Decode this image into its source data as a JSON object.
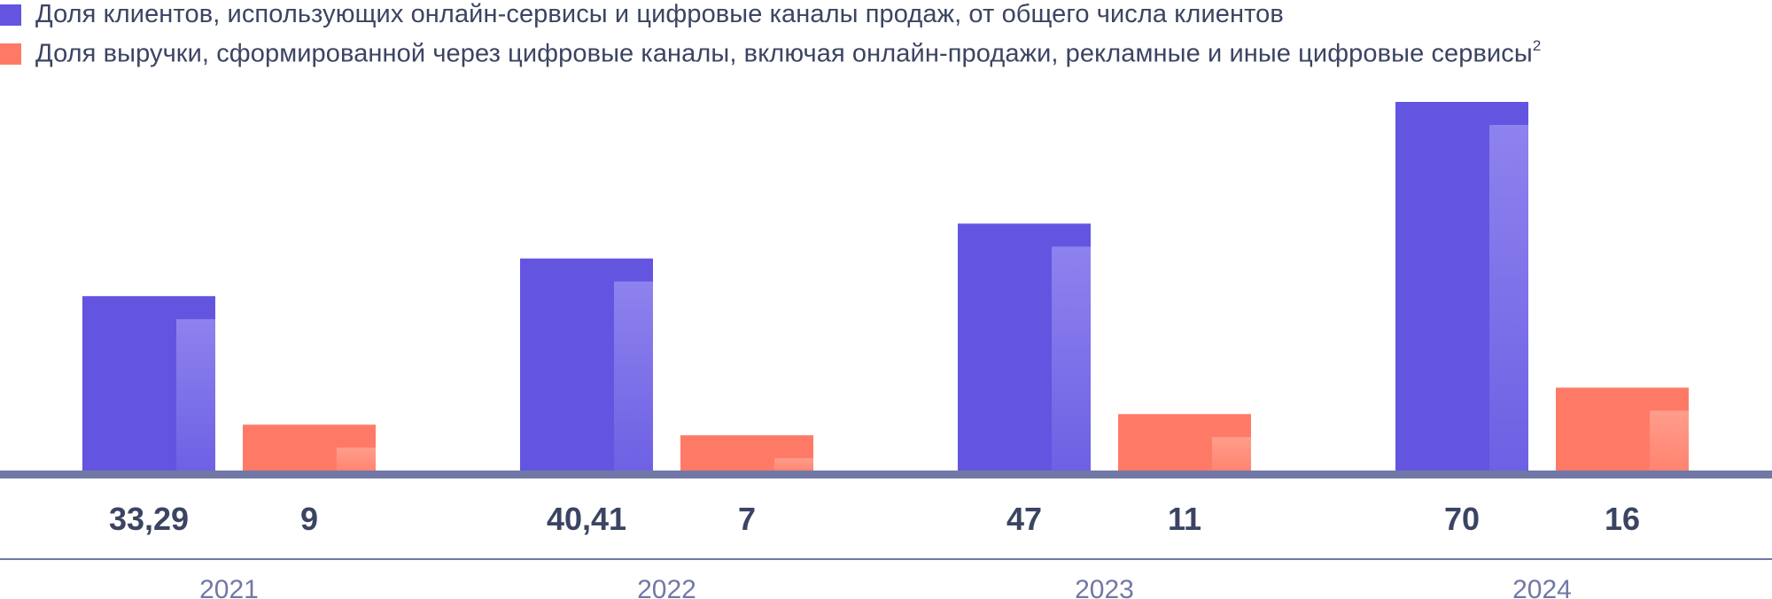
{
  "chart_data": {
    "type": "bar",
    "categories": [
      "2021",
      "2022",
      "2023",
      "2024"
    ],
    "series": [
      {
        "name": "Доля клиентов, использующих онлайн-сервисы и цифровые каналы продаж, от общего числа клиентов",
        "values": [
          33.29,
          40.41,
          47,
          70
        ],
        "labels": [
          "33,29",
          "40,41",
          "47",
          "70"
        ],
        "color": "#6355e0",
        "highlight": "#8e82ee"
      },
      {
        "name": "Доля выручки, сформированной через цифровые каналы, включая онлайн-продажи, рекламные и иные цифровые сервисы",
        "name_sup": "2",
        "values": [
          9,
          7,
          11,
          16
        ],
        "labels": [
          "9",
          "7",
          "11",
          "16"
        ],
        "color": "#ff7a66",
        "highlight": "#ff9d8b"
      }
    ],
    "ylim": [
      0,
      70
    ],
    "colors": {
      "baseline": "#7178a6",
      "value_text": "#3b4462",
      "year_text": "#7178a6",
      "divider": "#7178a6"
    }
  }
}
